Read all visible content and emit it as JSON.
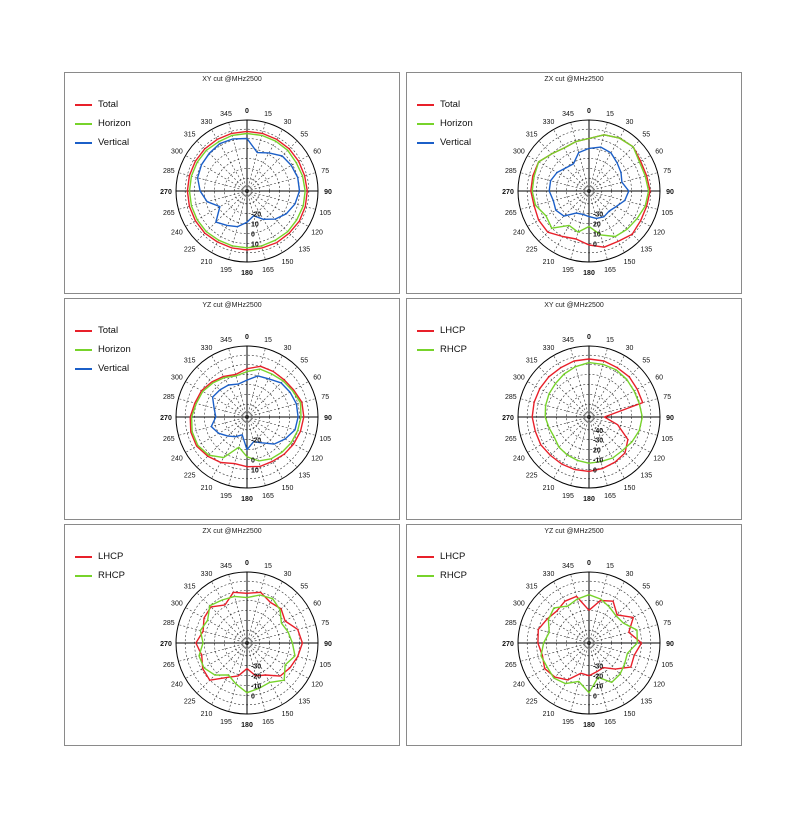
{
  "colors": {
    "Total": "#e8202a",
    "Horizon": "#77d32b",
    "Vertical": "#1b5fc8",
    "LHCP": "#e8202a",
    "RHCP": "#77d32b"
  },
  "chart_data": [
    {
      "type": "polar",
      "title": "XY cut @MHz2500",
      "angle_labels": [
        "0",
        "15",
        "30",
        "55",
        "60",
        "75",
        "90",
        "105",
        "120",
        "135",
        "150",
        "165",
        "180",
        "195",
        "210",
        "225",
        "240",
        "265",
        "270",
        "285",
        "300",
        "315",
        "330",
        "345"
      ],
      "radial_labels": [
        "-20",
        "10",
        "0",
        "10"
      ],
      "radial_range": [
        -40,
        10
      ],
      "grid": true,
      "legend_position": "top-left",
      "series": [
        {
          "name": "Total",
          "values": [
            2,
            2,
            2,
            2,
            2,
            2,
            2.5,
            2.5,
            2.5,
            2,
            2,
            1.5,
            1.5,
            1.5,
            1.5,
            2,
            2,
            2,
            2,
            2,
            2,
            2,
            2,
            2
          ]
        },
        {
          "name": "Horizon",
          "values": [
            0.5,
            0.5,
            0.5,
            0.5,
            0,
            0.5,
            1,
            1,
            0.5,
            0.5,
            0,
            0,
            0,
            0,
            0,
            0.5,
            0.5,
            0.5,
            0.5,
            0.5,
            0.5,
            0.5,
            0,
            0.5
          ]
        },
        {
          "name": "Vertical",
          "values": [
            -3,
            -12,
            -9,
            -5,
            -4,
            -3,
            -3,
            -5,
            -8,
            -12,
            -17,
            -22,
            -18,
            -14,
            -12,
            -9,
            -18,
            -11,
            -7,
            -4,
            -3,
            -2.5,
            -1.5,
            -2
          ]
        }
      ]
    },
    {
      "type": "polar",
      "title": "ZX cut @MHz2500",
      "angle_labels": [
        "0",
        "15",
        "30",
        "55",
        "60",
        "75",
        "90",
        "105",
        "120",
        "135",
        "150",
        "165",
        "180",
        "195",
        "210",
        "225",
        "240",
        "265",
        "270",
        "285",
        "300",
        "315",
        "330",
        "345"
      ],
      "radial_labels": [
        "-30",
        "20",
        "10",
        "0"
      ],
      "radial_range": [
        -40,
        10
      ],
      "grid": true,
      "legend_position": "top-left",
      "series": [
        {
          "name": "Total",
          "values": [
            -3,
            1,
            3,
            4,
            2,
            2,
            3,
            2,
            2,
            3,
            1,
            1,
            -2,
            -5,
            -3,
            1,
            1,
            0,
            1,
            1,
            1,
            -3,
            -5,
            -4
          ]
        },
        {
          "name": "Horizon",
          "values": [
            -3,
            1,
            3,
            4,
            1,
            1,
            2,
            1,
            -1,
            -2,
            -3,
            -8,
            -15,
            -10,
            -12,
            -3,
            -5,
            -1,
            0,
            0,
            1,
            -3,
            -5,
            -4
          ]
        },
        {
          "name": "Vertical",
          "values": [
            -10,
            -8,
            -9,
            -12,
            -14,
            -16,
            -12,
            -14,
            -18,
            -20,
            -19,
            -20,
            -22,
            -23,
            -22,
            -15,
            -13,
            -14,
            -12,
            -12,
            -14,
            -17,
            -18,
            -12
          ]
        }
      ]
    },
    {
      "type": "polar",
      "title": "YZ cut @MHz2500",
      "angle_labels": [
        "0",
        "15",
        "30",
        "55",
        "60",
        "75",
        "90",
        "105",
        "120",
        "135",
        "150",
        "165",
        "180",
        "195",
        "210",
        "225",
        "240",
        "265",
        "270",
        "285",
        "300",
        "315",
        "330",
        "345"
      ],
      "radial_labels": [
        "-20",
        "0",
        "10"
      ],
      "radial_range": [
        -40,
        10
      ],
      "grid": true,
      "legend_position": "top-left",
      "series": [
        {
          "name": "Total",
          "values": [
            -6,
            -3,
            -3,
            -3,
            -2,
            0,
            0,
            -1,
            -2,
            -3,
            -4,
            -4,
            -5,
            -6,
            -3,
            -1,
            1,
            1,
            0,
            -2,
            -3,
            -5,
            -7,
            -9
          ]
        },
        {
          "name": "Horizon",
          "values": [
            -8,
            -5,
            -5,
            -4,
            -3,
            -1,
            -2,
            -3,
            -4,
            -5,
            -6,
            -8,
            -12,
            -18,
            -7,
            -2,
            0,
            0,
            -1,
            -3,
            -4,
            -6,
            -8,
            -10
          ]
        },
        {
          "name": "Vertical",
          "values": [
            -14,
            -10,
            -9,
            -6,
            -5,
            -4,
            -4,
            -5,
            -9,
            -13,
            -19,
            -22,
            -17,
            -27,
            -24,
            -21,
            -17,
            -14,
            -18,
            -16,
            -12,
            -13,
            -14,
            -16
          ]
        }
      ]
    },
    {
      "type": "polar",
      "title": "XY cut @MHz2500",
      "angle_labels": [
        "0",
        "15",
        "30",
        "55",
        "60",
        "75",
        "90",
        "105",
        "120",
        "135",
        "150",
        "165",
        "180",
        "195",
        "210",
        "225",
        "240",
        "265",
        "270",
        "285",
        "300",
        "315",
        "330",
        "345"
      ],
      "radial_labels": [
        "-40",
        "-30",
        "20",
        "-10",
        "0"
      ],
      "radial_range": [
        -50,
        10
      ],
      "grid": true,
      "legend_position": "top-left",
      "series": [
        {
          "name": "LHCP",
          "values": [
            -1,
            -1,
            -2,
            -2,
            -3,
            -3,
            -37,
            -25,
            -12,
            -7,
            -6,
            -5,
            -4,
            -4,
            -4,
            -4,
            -3,
            -3,
            -2,
            -2,
            -2,
            -2,
            -2,
            -1
          ]
        },
        {
          "name": "RHCP",
          "values": [
            -4,
            -4,
            -4,
            -5,
            -6,
            -6,
            -5,
            -6,
            -8,
            -10,
            -10,
            -11,
            -11,
            -12,
            -13,
            -14,
            -16,
            -15,
            -13,
            -12,
            -11,
            -10,
            -8,
            -6
          ]
        }
      ]
    },
    {
      "type": "polar",
      "title": "ZX cut @MHz2500",
      "angle_labels": [
        "0",
        "15",
        "30",
        "55",
        "60",
        "75",
        "90",
        "105",
        "120",
        "135",
        "150",
        "165",
        "180",
        "195",
        "210",
        "225",
        "240",
        "265",
        "270",
        "285",
        "300",
        "315",
        "330",
        "345"
      ],
      "radial_labels": [
        "-30",
        "-20",
        "-10",
        "0"
      ],
      "radial_range": [
        -40,
        10
      ],
      "grid": true,
      "legend_position": "top-left",
      "series": [
        {
          "name": "LHCP",
          "values": [
            -5,
            -3,
            -7,
            -6,
            -9,
            -3,
            -1,
            -3,
            -5,
            -7,
            -14,
            -16,
            -22,
            -16,
            -12,
            -3,
            -4,
            -7,
            -4,
            -8,
            -5,
            -4,
            -9,
            -3
          ]
        },
        {
          "name": "RHCP",
          "values": [
            -8,
            -5,
            -4,
            -7,
            -12,
            -10,
            -8,
            -5,
            -9,
            -3,
            -8,
            -7,
            -5,
            -10,
            -14,
            -8,
            -5,
            -5,
            -9,
            -6,
            -8,
            -3,
            -5,
            -6
          ]
        }
      ]
    },
    {
      "type": "polar",
      "title": "YZ cut @MHz2500",
      "angle_labels": [
        "0",
        "15",
        "30",
        "55",
        "60",
        "75",
        "90",
        "105",
        "120",
        "135",
        "150",
        "165",
        "180",
        "195",
        "210",
        "225",
        "240",
        "265",
        "270",
        "285",
        "300",
        "315",
        "330",
        "345"
      ],
      "radial_labels": [
        "-30",
        "-20",
        "-10",
        "0"
      ],
      "radial_range": [
        -40,
        10
      ],
      "grid": true,
      "legend_position": "top-left",
      "series": [
        {
          "name": "LHCP",
          "values": [
            -17,
            -9,
            -6,
            -12,
            -4,
            -11,
            -3,
            -7,
            -6,
            -14,
            -20,
            -19,
            -17,
            -18,
            -10,
            -6,
            -4,
            -6,
            -4,
            -3,
            -6,
            -8,
            -6,
            -6
          ]
        },
        {
          "name": "RHCP",
          "values": [
            -6,
            -8,
            -11,
            -13,
            -12,
            -5,
            -6,
            -12,
            -11,
            -9,
            -8,
            -15,
            -5,
            -12,
            -7,
            -5,
            -6,
            -5,
            -8,
            -11,
            -7,
            -5,
            -10,
            -8
          ]
        }
      ]
    }
  ]
}
